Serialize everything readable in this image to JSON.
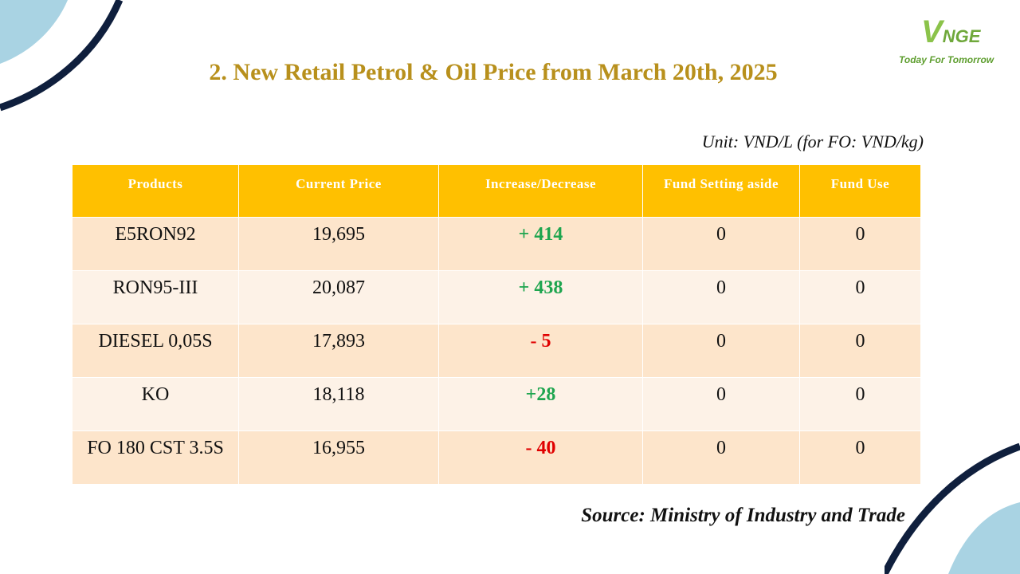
{
  "logo": {
    "mark_v": "V",
    "mark_rest": "NGE",
    "tagline": "Today For Tomorrow"
  },
  "title": "2. New Retail Petrol & Oil Price from March 20th, 2025",
  "unit_note": "Unit: VND/L (for FO: VND/kg)",
  "table": {
    "headers": [
      "Products",
      "Current Price",
      "Increase/Decrease",
      "Fund Setting aside",
      "Fund Use"
    ],
    "rows": [
      {
        "product": "E5RON92",
        "price": "19,695",
        "change": "+ 414",
        "direction": "up",
        "fund_setting": "0",
        "fund_use": "0"
      },
      {
        "product": "RON95-III",
        "price": "20,087",
        "change": "+ 438",
        "direction": "up",
        "fund_setting": "0",
        "fund_use": "0"
      },
      {
        "product": "DIESEL 0,05S",
        "price": "17,893",
        "change": "- 5",
        "direction": "down",
        "fund_setting": "0",
        "fund_use": "0"
      },
      {
        "product": "KO",
        "price": "18,118",
        "change": "+28",
        "direction": "up",
        "fund_setting": "0",
        "fund_use": "0"
      },
      {
        "product": "FO 180 CST 3.5S",
        "price": "16,955",
        "change": "- 40",
        "direction": "down",
        "fund_setting": "0",
        "fund_use": "0"
      }
    ]
  },
  "source": "Source: Ministry of Industry and Trade",
  "colors": {
    "header_bg": "#ffc000",
    "row_odd": "#fde5cb",
    "row_even": "#fdf2e7",
    "increase": "#1ea54f",
    "decrease": "#e00000",
    "title": "#b8901c",
    "deco_navy": "#0f1f3d",
    "deco_light_blue": "#a9d3e3"
  }
}
